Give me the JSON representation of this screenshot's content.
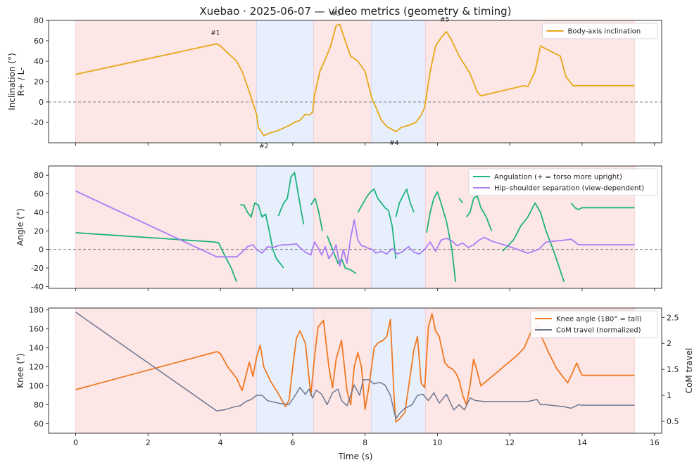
{
  "figure": {
    "title": "Xuebao · 2025-06-07 — video metrics (geometry & timing)",
    "xlabel": "Time (s)",
    "x_ticks": [
      0,
      2,
      4,
      6,
      8,
      10,
      12,
      14,
      16
    ],
    "colors": {
      "pink_band": "#fde6e6",
      "blue_band": "#e7effc",
      "zero_line": "#808080"
    }
  },
  "chart_data": [
    {
      "type": "line",
      "ylabel_line1": "Inclination (°)",
      "ylabel_line2": "R+ / L-",
      "xlim": [
        -0.75,
        16.2
      ],
      "ylim": [
        -40,
        80
      ],
      "y_ticks": [
        -20,
        0,
        20,
        40,
        60,
        80
      ],
      "grid": false,
      "legend": "top-right",
      "bands": [
        {
          "start": 0,
          "end": 5.0,
          "kind": "pink"
        },
        {
          "start": 5.0,
          "end": 6.58,
          "kind": "blue"
        },
        {
          "start": 6.58,
          "end": 8.18,
          "kind": "pink"
        },
        {
          "start": 8.18,
          "end": 9.67,
          "kind": "blue"
        },
        {
          "start": 9.67,
          "end": 15.45,
          "kind": "pink"
        }
      ],
      "annotations": [
        {
          "text": "#1",
          "x": 3.86,
          "y": 66
        },
        {
          "text": "#2",
          "x": 5.2,
          "y": -45
        },
        {
          "text": "#3",
          "x": 7.2,
          "y": 85
        },
        {
          "text": "#4",
          "x": 8.8,
          "y": -42
        },
        {
          "text": "#5",
          "x": 10.2,
          "y": 79
        }
      ],
      "series": [
        {
          "name": "Body-axis inclination",
          "color": "#e6a817",
          "x": [
            0,
            3.9,
            4.0,
            4.3,
            4.45,
            4.6,
            4.8,
            5.0,
            5.05,
            5.2,
            5.4,
            5.6,
            5.9,
            6.05,
            6.2,
            6.35,
            6.45,
            6.55,
            6.6,
            6.75,
            6.9,
            7.05,
            7.2,
            7.3,
            7.45,
            7.6,
            7.8,
            8.0,
            8.2,
            8.3,
            8.45,
            8.6,
            8.75,
            8.85,
            9.0,
            9.2,
            9.4,
            9.55,
            9.65,
            9.8,
            9.95,
            10.1,
            10.25,
            10.4,
            10.6,
            10.9,
            11.1,
            11.2,
            12.4,
            12.5,
            12.7,
            12.85,
            13.0,
            13.4,
            13.55,
            13.75,
            14.0,
            15.45
          ],
          "y": [
            27,
            57,
            55,
            45,
            40,
            30,
            10,
            -12,
            -25,
            -33,
            -30,
            -28,
            -23,
            -20,
            -18,
            -12,
            -13,
            -10,
            6,
            30,
            42,
            55,
            75,
            76,
            60,
            45,
            40,
            30,
            2,
            -5,
            -18,
            -24,
            -27,
            -29,
            -25,
            -23,
            -20,
            -13,
            -5,
            30,
            55,
            63,
            69,
            60,
            45,
            28,
            10,
            6,
            16,
            15,
            30,
            55,
            52,
            45,
            25,
            16,
            16,
            16
          ]
        }
      ]
    },
    {
      "type": "line",
      "ylabel": "Angle (°)",
      "xlim": [
        -0.75,
        16.2
      ],
      "ylim": [
        -42,
        90
      ],
      "y_ticks": [
        -40,
        -20,
        0,
        20,
        40,
        60,
        80
      ],
      "grid": false,
      "legend": "top-right",
      "bands": [
        {
          "start": 0,
          "end": 5.0,
          "kind": "pink"
        },
        {
          "start": 5.0,
          "end": 6.58,
          "kind": "blue"
        },
        {
          "start": 6.58,
          "end": 8.18,
          "kind": "pink"
        },
        {
          "start": 8.18,
          "end": 9.67,
          "kind": "blue"
        },
        {
          "start": 9.67,
          "end": 15.45,
          "kind": "pink"
        }
      ],
      "series": [
        {
          "name": "Angulation (+ = torso more upright)",
          "color": "#1db37e",
          "segments": [
            {
              "x": [
                0,
                3.85,
                3.95,
                4.1,
                4.3,
                4.45
              ],
              "y": [
                18,
                8,
                7,
                -5,
                -20,
                -35
              ]
            },
            {
              "x": [
                4.55,
                4.65,
                4.75,
                4.85,
                4.95,
                5.05,
                5.15,
                5.25,
                5.35,
                5.45,
                5.55,
                5.65,
                5.75
              ],
              "y": [
                48,
                48,
                40,
                35,
                50,
                48,
                35,
                38,
                20,
                0,
                -10,
                -15,
                -20
              ]
            },
            {
              "x": [
                5.6,
                5.75,
                5.85,
                5.95,
                6.05,
                6.15,
                6.3
              ],
              "y": [
                36,
                50,
                55,
                78,
                83,
                60,
                27
              ]
            },
            {
              "x": [
                6.5,
                6.62,
                6.72,
                6.82
              ],
              "y": [
                48,
                55,
                40,
                20
              ]
            },
            {
              "x": [
                6.95,
                7.05,
                7.15,
                7.25,
                7.35,
                7.45,
                7.6,
                7.75
              ],
              "y": [
                15,
                5,
                -5,
                -15,
                -10,
                -20,
                -22,
                -26
              ]
            },
            {
              "x": [
                7.8,
                7.95,
                8.05,
                8.15,
                8.25,
                8.35,
                8.45,
                8.55,
                8.65,
                8.75,
                8.85
              ],
              "y": [
                40,
                50,
                57,
                62,
                65,
                55,
                50,
                45,
                42,
                25,
                -10
              ]
            },
            {
              "x": [
                8.85,
                8.95,
                9.05,
                9.15,
                9.25,
                9.35
              ],
              "y": [
                35,
                50,
                58,
                65,
                50,
                40
              ]
            },
            {
              "x": [
                9.7,
                9.8,
                9.9,
                10.0,
                10.1,
                10.25,
                10.4,
                10.5
              ],
              "y": [
                18,
                40,
                55,
                62,
                50,
                30,
                0,
                -35
              ]
            },
            {
              "x": [
                10.6,
                10.7
              ],
              "y": [
                55,
                50
              ]
            },
            {
              "x": [
                10.8,
                10.9,
                11.0,
                11.1,
                11.2,
                11.35,
                11.5
              ],
              "y": [
                35,
                40,
                55,
                58,
                45,
                35,
                20
              ]
            },
            {
              "x": [
                11.8,
                12.1,
                12.3,
                12.5,
                12.7,
                12.85,
                13.0,
                13.2,
                13.5
              ],
              "y": [
                -2,
                10,
                25,
                35,
                50,
                40,
                20,
                0,
                -35
              ]
            },
            {
              "x": [
                13.7,
                13.8,
                13.9,
                14.0,
                14.2,
                15.45
              ],
              "y": [
                50,
                45,
                43,
                45,
                45,
                45
              ]
            }
          ]
        },
        {
          "name": "Hip–shoulder separation (view-dependent)",
          "color": "#a97df5",
          "x": [
            0,
            3.9,
            4.0,
            4.45,
            4.6,
            4.75,
            4.9,
            5.0,
            5.15,
            5.3,
            5.45,
            5.6,
            5.75,
            5.9,
            6.1,
            6.2,
            6.35,
            6.5,
            6.6,
            6.7,
            6.8,
            6.9,
            7.0,
            7.1,
            7.2,
            7.3,
            7.4,
            7.5,
            7.6,
            7.7,
            7.8,
            7.9,
            8.0,
            8.1,
            8.2,
            8.3,
            8.45,
            8.6,
            8.75,
            8.9,
            9.05,
            9.2,
            9.35,
            9.5,
            9.65,
            9.8,
            9.95,
            10.1,
            10.25,
            10.4,
            10.55,
            10.7,
            10.85,
            11.0,
            11.15,
            11.3,
            11.5,
            12.0,
            12.5,
            12.8,
            13.0,
            13.5,
            13.7,
            13.9,
            14.0,
            15.45
          ],
          "y": [
            63,
            -8,
            -8,
            -8,
            -3,
            3,
            5,
            0,
            -4,
            3,
            2,
            4,
            5,
            5,
            6,
            2,
            -3,
            -6,
            8,
            2,
            -6,
            3,
            -10,
            -4,
            5,
            -18,
            0,
            -15,
            12,
            32,
            10,
            4,
            3,
            1,
            0,
            -4,
            -2,
            -5,
            1,
            -5,
            -2,
            3,
            -3,
            -5,
            0,
            8,
            -2,
            10,
            12,
            9,
            4,
            7,
            2,
            5,
            10,
            13,
            9,
            3,
            -4,
            0,
            8,
            10,
            11,
            5,
            5,
            5
          ]
        }
      ]
    },
    {
      "type": "line",
      "ylabel": "Knee (°)",
      "ylabel_right": "CoM travel",
      "xlim": [
        -0.75,
        16.2
      ],
      "ylim": [
        50,
        182
      ],
      "y_ticks": [
        60,
        80,
        100,
        120,
        140,
        160,
        180
      ],
      "ylim_right": [
        0.27,
        2.68
      ],
      "y_ticks_right": [
        0.5,
        1.0,
        1.5,
        2.0,
        2.5
      ],
      "grid": false,
      "legend": "top-right",
      "bands": [
        {
          "start": 0,
          "end": 5.0,
          "kind": "pink"
        },
        {
          "start": 5.0,
          "end": 6.58,
          "kind": "blue"
        },
        {
          "start": 6.58,
          "end": 8.18,
          "kind": "pink"
        },
        {
          "start": 8.18,
          "end": 9.67,
          "kind": "blue"
        },
        {
          "start": 9.67,
          "end": 15.45,
          "kind": "pink"
        }
      ],
      "series": [
        {
          "name": "Knee angle (180° = tall)",
          "color": "#f07922",
          "axis": "left",
          "x": [
            0,
            3.9,
            4.0,
            4.2,
            4.45,
            4.6,
            4.7,
            4.8,
            4.9,
            5.0,
            5.1,
            5.2,
            5.4,
            5.6,
            5.8,
            5.9,
            6.0,
            6.1,
            6.2,
            6.35,
            6.5,
            6.6,
            6.7,
            6.85,
            7.0,
            7.1,
            7.2,
            7.35,
            7.5,
            7.6,
            7.7,
            7.8,
            7.9,
            8.0,
            8.1,
            8.25,
            8.35,
            8.5,
            8.6,
            8.7,
            8.8,
            8.85,
            8.95,
            9.1,
            9.2,
            9.35,
            9.45,
            9.55,
            9.65,
            9.75,
            9.85,
            9.95,
            10.05,
            10.2,
            10.3,
            10.4,
            10.5,
            10.6,
            10.7,
            10.8,
            10.9,
            11.0,
            11.1,
            11.2,
            12.2,
            12.4,
            12.6,
            12.8,
            12.9,
            13.1,
            13.3,
            13.6,
            13.75,
            13.85,
            14.0,
            15.45
          ],
          "y": [
            96,
            136,
            134,
            120,
            108,
            95,
            110,
            125,
            110,
            130,
            143,
            120,
            104,
            92,
            78,
            85,
            120,
            150,
            158,
            145,
            90,
            130,
            162,
            169,
            120,
            98,
            128,
            148,
            95,
            80,
            120,
            135,
            120,
            75,
            98,
            140,
            145,
            148,
            152,
            170,
            90,
            62,
            65,
            72,
            98,
            138,
            152,
            103,
            98,
            162,
            176,
            158,
            152,
            125,
            120,
            118,
            114,
            106,
            90,
            80,
            100,
            128,
            115,
            100,
            132,
            140,
            158,
            165,
            150,
            133,
            118,
            103,
            115,
            124,
            111,
            111
          ]
        },
        {
          "name": "CoM travel (normalized)",
          "color": "#6e7891",
          "axis": "right",
          "x": [
            0,
            3.9,
            4.1,
            4.4,
            4.55,
            4.7,
            4.85,
            5.0,
            5.15,
            5.3,
            5.6,
            5.9,
            6.05,
            6.2,
            6.35,
            6.45,
            6.55,
            6.65,
            6.8,
            6.95,
            7.1,
            7.25,
            7.35,
            7.5,
            7.6,
            7.7,
            7.85,
            7.95,
            8.1,
            8.25,
            8.4,
            8.55,
            8.7,
            8.85,
            8.95,
            9.1,
            9.3,
            9.45,
            9.6,
            9.75,
            9.9,
            10.05,
            10.25,
            10.45,
            10.6,
            10.75,
            10.9,
            11.05,
            11.3,
            12.5,
            12.75,
            12.85,
            13.0,
            13.5,
            13.7,
            13.9,
            14.0,
            15.45
          ],
          "y": [
            2.6,
            0.7,
            0.72,
            0.78,
            0.8,
            0.88,
            0.92,
            1.0,
            1.0,
            0.9,
            0.85,
            0.82,
            0.98,
            1.15,
            1.02,
            1.12,
            0.95,
            1.1,
            1.02,
            0.82,
            1.05,
            1.12,
            0.9,
            0.8,
            1.0,
            1.2,
            1.0,
            1.3,
            1.3,
            1.22,
            1.25,
            1.2,
            1.0,
            0.55,
            0.65,
            0.75,
            0.82,
            1.0,
            1.02,
            0.9,
            1.05,
            0.85,
            1.02,
            0.72,
            0.82,
            0.72,
            0.95,
            0.9,
            0.88,
            0.88,
            0.92,
            0.82,
            0.82,
            0.78,
            0.75,
            0.82,
            0.81,
            0.81
          ]
        }
      ]
    }
  ]
}
